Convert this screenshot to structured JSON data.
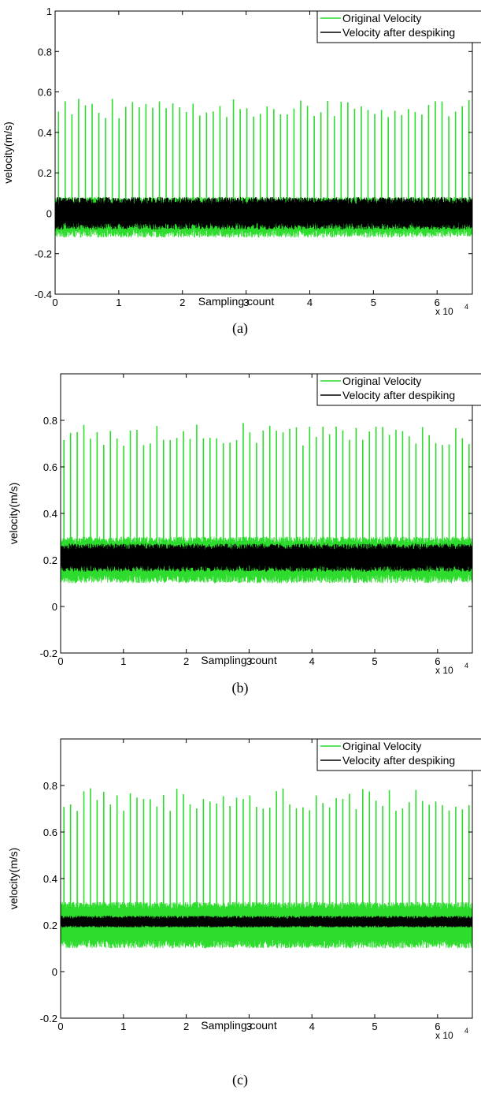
{
  "colors": {
    "original": "#2ddc2d",
    "despiked": "#000000",
    "axis": "#000000",
    "background": "#ffffff"
  },
  "chart_data": [
    {
      "type": "line",
      "caption": "(a)",
      "xlabel": "Sampling count",
      "ylabel": "velocity(m/s)",
      "x_multiplier": "x 10",
      "x_multiplier_exp": "4",
      "xlim": [
        0,
        65536
      ],
      "ylim": [
        -0.4,
        1.0
      ],
      "xticks": [
        0,
        10000,
        20000,
        30000,
        40000,
        50000,
        60000
      ],
      "xtick_labels": [
        "0",
        "1",
        "2",
        "3",
        "4",
        "5",
        "6"
      ],
      "yticks": [
        -0.4,
        -0.2,
        0,
        0.2,
        0.4,
        0.6,
        0.8,
        1
      ],
      "ytick_labels": [
        "-0.4",
        "-0.2",
        "0",
        "0.2",
        "0.4",
        "0.6",
        "0.8",
        "1"
      ],
      "legend": {
        "placement": "top-right",
        "entries": [
          "Original Velocity",
          "Velocity after despiking"
        ]
      },
      "grid": false,
      "series": [
        {
          "name": "Original Velocity",
          "baseline": 0.0,
          "noise_low": -0.12,
          "noise_high": 0.08,
          "spike_count": 62,
          "spike_peak_range": [
            0.47,
            0.57
          ]
        },
        {
          "name": "Velocity after despiking",
          "baseline": 0.0,
          "noise_low": -0.08,
          "noise_high": 0.08
        }
      ]
    },
    {
      "type": "line",
      "caption": "(b)",
      "xlabel": "Sampling count",
      "ylabel": "velocity(m/s)",
      "x_multiplier": "x 10",
      "x_multiplier_exp": "4",
      "xlim": [
        0,
        65536
      ],
      "ylim": [
        -0.2,
        1.0
      ],
      "xticks": [
        0,
        10000,
        20000,
        30000,
        40000,
        50000,
        60000
      ],
      "xtick_labels": [
        "0",
        "1",
        "2",
        "3",
        "4",
        "5",
        "6"
      ],
      "yticks": [
        -0.2,
        0,
        0.2,
        0.4,
        0.6,
        0.8
      ],
      "ytick_labels": [
        "-0.2",
        "0",
        "0.2",
        "0.4",
        "0.6",
        "0.8"
      ],
      "legend": {
        "placement": "top-right",
        "entries": [
          "Original Velocity",
          "Velocity after despiking"
        ]
      },
      "grid": false,
      "series": [
        {
          "name": "Original Velocity",
          "baseline": 0.21,
          "noise_low": 0.1,
          "noise_high": 0.3,
          "spike_count": 62,
          "spike_peak_range": [
            0.69,
            0.79
          ]
        },
        {
          "name": "Velocity after despiking",
          "baseline": 0.21,
          "noise_low": 0.15,
          "noise_high": 0.27
        }
      ]
    },
    {
      "type": "line",
      "caption": "(c)",
      "xlabel": "Sampling count",
      "ylabel": "velocity(m/s)",
      "x_multiplier": "x 10",
      "x_multiplier_exp": "4",
      "xlim": [
        0,
        65536
      ],
      "ylim": [
        -0.2,
        1.0
      ],
      "xticks": [
        0,
        10000,
        20000,
        30000,
        40000,
        50000,
        60000
      ],
      "xtick_labels": [
        "0",
        "1",
        "2",
        "3",
        "4",
        "5",
        "6"
      ],
      "yticks": [
        -0.2,
        0,
        0.2,
        0.4,
        0.6,
        0.8
      ],
      "ytick_labels": [
        "-0.2",
        "0",
        "0.2",
        "0.4",
        "0.6",
        "0.8"
      ],
      "legend": {
        "placement": "top-right",
        "entries": [
          "Original Velocity",
          "Velocity after despiking"
        ]
      },
      "grid": false,
      "series": [
        {
          "name": "Original Velocity",
          "baseline": 0.21,
          "noise_low": 0.1,
          "noise_high": 0.3,
          "spike_count": 62,
          "spike_peak_range": [
            0.69,
            0.79
          ]
        },
        {
          "name": "Velocity after despiking",
          "baseline": 0.21,
          "noise_low": 0.19,
          "noise_high": 0.24
        }
      ]
    }
  ]
}
